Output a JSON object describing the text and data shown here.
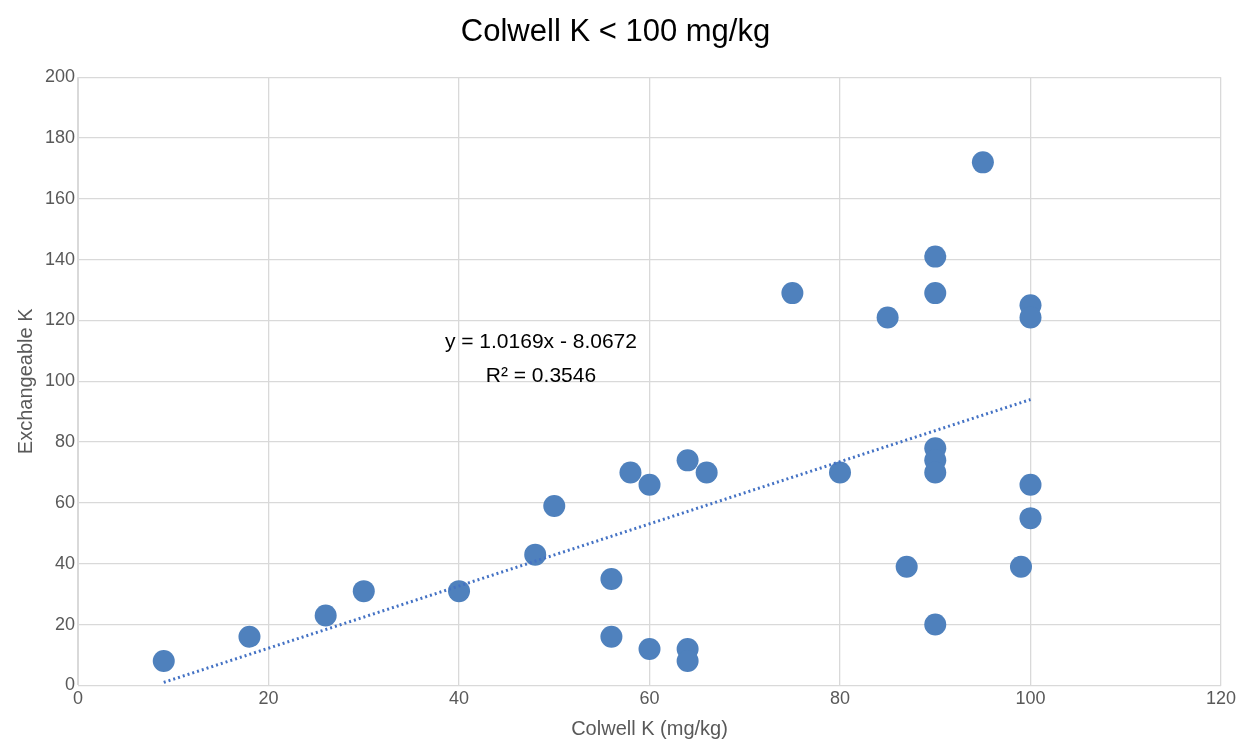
{
  "chart_data": {
    "type": "scatter",
    "title": "Colwell K < 100 mg/kg",
    "xlabel": "Colwell K (mg/kg)",
    "ylabel": "Exchangeable K",
    "xlim": [
      0,
      120
    ],
    "xticks": [
      0,
      20,
      40,
      60,
      80,
      100,
      120
    ],
    "ylim": [
      0,
      200
    ],
    "yticks": [
      0,
      20,
      40,
      60,
      80,
      100,
      120,
      140,
      160,
      180,
      200
    ],
    "grid": true,
    "legend": false,
    "marker": "circle",
    "annotations": [
      "y = 1.0169x - 8.0672",
      "R² = 0.3546"
    ],
    "series": [
      {
        "color": "#4f81bd",
        "x": [
          9,
          18,
          26,
          30,
          40,
          48,
          50,
          56,
          56,
          58,
          60,
          60,
          64,
          64,
          64,
          66,
          75,
          80,
          85,
          87,
          90,
          90,
          90,
          90,
          90,
          90,
          95,
          99,
          100,
          100,
          100,
          100
        ],
        "values": [
          8,
          16,
          23,
          31,
          31,
          43,
          59,
          35,
          16,
          70,
          66,
          12,
          74,
          12,
          8,
          70,
          129,
          70,
          121,
          39,
          141,
          129,
          78,
          74,
          70,
          20,
          172,
          39,
          125,
          121,
          66,
          55
        ]
      },
      {
        "type": "line",
        "color": "#4472c4",
        "line_style": "dotted",
        "marker": "none",
        "x": [
          9,
          100
        ],
        "values": [
          1,
          94
        ]
      }
    ]
  }
}
